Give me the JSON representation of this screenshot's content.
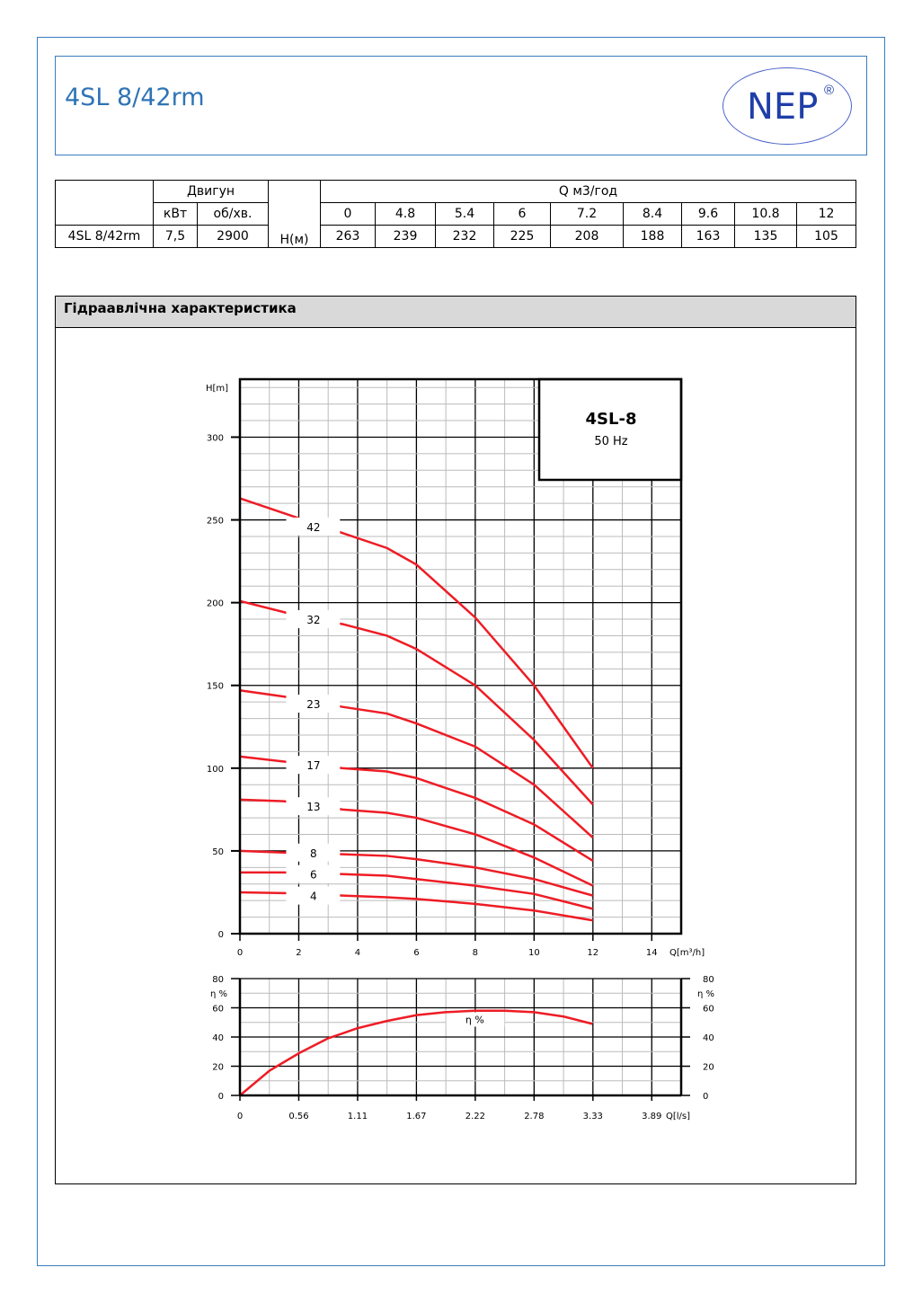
{
  "header": {
    "title": "4SL 8/42rm",
    "logo": "NEP",
    "logo_mark": "®"
  },
  "table": {
    "motor_label": "Двигун",
    "kw_label": "кВт",
    "rpm_label": "об/хв.",
    "head_label": "H(м)",
    "q_label": "Q м3/год",
    "q_values": [
      "0",
      "4.8",
      "5.4",
      "6",
      "7.2",
      "8.4",
      "9.6",
      "10.8",
      "12"
    ],
    "model": "4SL 8/42rm",
    "kw": "7,5",
    "rpm": "2900",
    "h_values": [
      "263",
      "239",
      "232",
      "225",
      "208",
      "188",
      "163",
      "135",
      "105"
    ]
  },
  "section": {
    "title": "Гідраавлічна характеристика"
  },
  "chart_data": [
    {
      "type": "line",
      "title": "4SL-8",
      "subtitle": "50 Hz",
      "xlabel": "Q[m³/h]",
      "ylabel": "H[m]",
      "xlim": [
        0,
        15
      ],
      "ylim": [
        0,
        335
      ],
      "xticks": [
        0,
        2,
        4,
        6,
        8,
        10,
        12,
        14
      ],
      "yticks": [
        0,
        50,
        100,
        150,
        200,
        250,
        300
      ],
      "grid": true,
      "series": [
        {
          "name": "42",
          "x": [
            0,
            2,
            3.5,
            5,
            6,
            8,
            10,
            12
          ],
          "y": [
            263,
            251,
            242,
            233,
            223,
            191,
            150,
            100
          ]
        },
        {
          "name": "32",
          "x": [
            0,
            2,
            3.5,
            5,
            6,
            8,
            10,
            12
          ],
          "y": [
            201,
            192,
            187,
            180,
            172,
            150,
            117,
            78
          ]
        },
        {
          "name": "23",
          "x": [
            0,
            2,
            3.5,
            5,
            6,
            8,
            10,
            12
          ],
          "y": [
            147,
            142,
            137,
            133,
            127,
            113,
            90,
            58
          ]
        },
        {
          "name": "17",
          "x": [
            0,
            1.5,
            3.5,
            5,
            6,
            8,
            10,
            12
          ],
          "y": [
            107,
            104,
            100,
            98,
            94,
            82,
            66,
            44
          ]
        },
        {
          "name": "13",
          "x": [
            0,
            1.5,
            3.5,
            5,
            6,
            8,
            10,
            12
          ],
          "y": [
            81,
            80,
            75,
            73,
            70,
            60,
            46,
            29
          ]
        },
        {
          "name": "8",
          "x": [
            0,
            1.5,
            3.5,
            5,
            6,
            8,
            10,
            12
          ],
          "y": [
            50,
            49,
            48,
            47,
            45,
            40,
            33,
            23
          ]
        },
        {
          "name": "6",
          "x": [
            0,
            1.5,
            3.5,
            5,
            6,
            8,
            10,
            12
          ],
          "y": [
            37,
            37,
            36,
            35,
            33,
            29,
            24,
            15
          ]
        },
        {
          "name": "4",
          "x": [
            0,
            1.5,
            3.5,
            5,
            6,
            8,
            10,
            12
          ],
          "y": [
            25,
            24.5,
            23,
            22,
            21,
            18,
            14,
            8
          ]
        }
      ],
      "label_y": [
        246,
        190,
        139,
        102,
        77,
        49,
        36,
        23
      ]
    },
    {
      "type": "line",
      "xlabel": "Q[l/s]",
      "ylabel": "η %",
      "curve_label": "η %",
      "xlim": [
        0,
        4.17
      ],
      "ylim": [
        0,
        80
      ],
      "xticks": [
        "0",
        "0.56",
        "1.11",
        "1.67",
        "2.22",
        "2.78",
        "3.33",
        "3.89"
      ],
      "yticks": [
        0,
        20,
        40,
        60,
        80
      ],
      "grid": true,
      "series": [
        {
          "name": "η %",
          "x": [
            0,
            0.28,
            0.56,
            0.83,
            1.11,
            1.39,
            1.67,
            1.94,
            2.22,
            2.5,
            2.78,
            3.06,
            3.33
          ],
          "y": [
            0,
            17,
            29,
            39,
            46,
            51,
            55,
            57,
            58,
            58,
            57,
            54,
            49
          ]
        }
      ]
    }
  ],
  "colors": {
    "curve": "#ee1c25",
    "accent": "#2e74b5"
  }
}
